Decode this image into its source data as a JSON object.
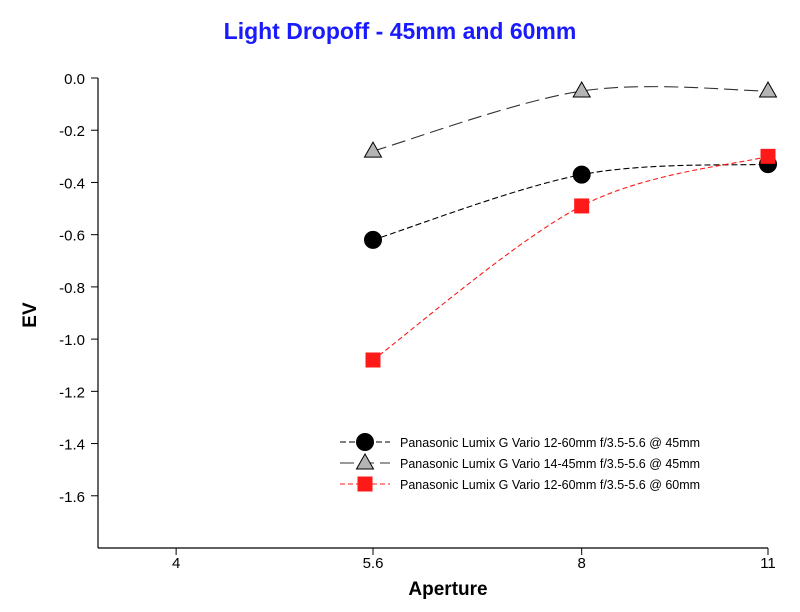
{
  "chart_data": {
    "type": "line",
    "title": "Light Dropoff - 45mm and 60mm",
    "xlabel": "Aperture",
    "ylabel": "EV",
    "x_scale": "log",
    "xlim": [
      3.5,
      11
    ],
    "ylim": [
      -1.8,
      0.0
    ],
    "x_ticks": [
      {
        "value": 4,
        "label": "4"
      },
      {
        "value": 5.6,
        "label": "5.6"
      },
      {
        "value": 8,
        "label": "8"
      },
      {
        "value": 11,
        "label": "11"
      }
    ],
    "y_ticks": [
      {
        "value": 0.0,
        "label": "0.0"
      },
      {
        "value": -0.2,
        "label": "-0.2"
      },
      {
        "value": -0.4,
        "label": "-0.4"
      },
      {
        "value": -0.6,
        "label": "-0.6"
      },
      {
        "value": -0.8,
        "label": "-0.8"
      },
      {
        "value": -1.0,
        "label": "-1.0"
      },
      {
        "value": -1.2,
        "label": "-1.2"
      },
      {
        "value": -1.4,
        "label": "-1.4"
      },
      {
        "value": -1.6,
        "label": "-1.6"
      }
    ],
    "grid": false,
    "legend_position": "bottom-right",
    "x": [
      5.6,
      8,
      11
    ],
    "series": [
      {
        "name": "Panasonic Lumix G Vario 12-60mm f/3.5-5.6 @ 45mm",
        "values": [
          -0.62,
          -0.37,
          -0.33
        ],
        "color": "#000000",
        "marker": "circle",
        "line_style": "dashed",
        "dash": "6,3"
      },
      {
        "name": "Panasonic Lumix G Vario 14-45mm f/3.5-5.6 @ 45mm",
        "values": [
          -0.28,
          -0.05,
          -0.05
        ],
        "color": "#333333",
        "marker_fill": "#b4b4b4",
        "marker": "triangle",
        "line_style": "dashed",
        "dash": "14,6"
      },
      {
        "name": "Panasonic Lumix G Vario 12-60mm f/3.5-5.6 @ 60mm",
        "values": [
          -1.08,
          -0.49,
          -0.3
        ],
        "color": "#ff1a1a",
        "marker": "square",
        "line_style": "dashed",
        "dash": "5,3"
      }
    ]
  }
}
